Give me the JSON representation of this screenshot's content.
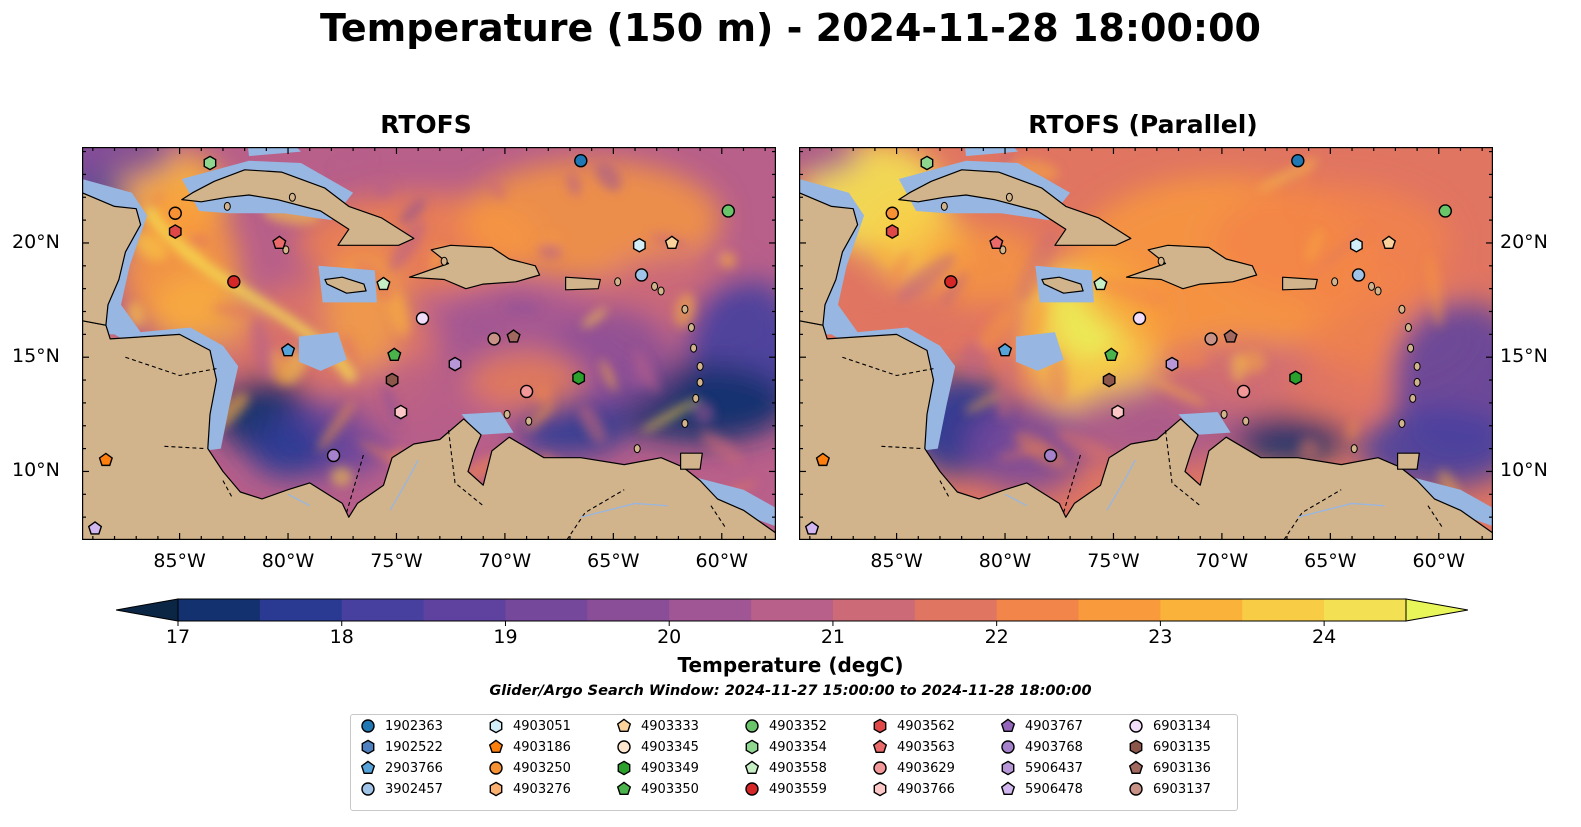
{
  "title": "Temperature (150 m) - 2024-11-28 18:00:00",
  "panels": [
    {
      "title": "RTOFS",
      "variant": "main"
    },
    {
      "title": "RTOFS (Parallel)",
      "variant": "parallel"
    }
  ],
  "map": {
    "lon_range": [
      -89.5,
      -57.5
    ],
    "lat_range": [
      7.0,
      24.2
    ],
    "lon_ticks": [
      {
        "value": -85,
        "label": "85°W"
      },
      {
        "value": -80,
        "label": "80°W"
      },
      {
        "value": -75,
        "label": "75°W"
      },
      {
        "value": -70,
        "label": "70°W"
      },
      {
        "value": -65,
        "label": "65°W"
      },
      {
        "value": -60,
        "label": "60°W"
      }
    ],
    "lat_ticks": [
      {
        "value": 20,
        "label": "20°N"
      },
      {
        "value": 15,
        "label": "15°N"
      },
      {
        "value": 10,
        "label": "10°N"
      }
    ],
    "land_color": "#d2b48c",
    "shelf_color": "#97b6e1"
  },
  "colorbar": {
    "label": "Temperature (degC)",
    "ticks": [
      "17",
      "18",
      "19",
      "20",
      "21",
      "22",
      "23",
      "24"
    ],
    "range": [
      17,
      24.5
    ],
    "colors": [
      "#0b2545",
      "#13316e",
      "#2a3a93",
      "#48409e",
      "#5f429f",
      "#75489c",
      "#8a4e99",
      "#a05594",
      "#b85f8a",
      "#cc6a78",
      "#e07562",
      "#f2854a",
      "#f99a3c",
      "#fbb23a",
      "#f9cc45",
      "#f3e153",
      "#e8f65a"
    ]
  },
  "search_window": "Glider/Argo Search Window: 2024-11-27 15:00:00 to 2024-11-28 18:00:00",
  "floats": [
    {
      "id": "1902363",
      "marker": "circle",
      "color": "#1f77b4",
      "lon": -66.5,
      "lat": 23.6
    },
    {
      "id": "1902522",
      "marker": "hexagon",
      "color": "#4f80bf",
      "lon": null,
      "lat": null
    },
    {
      "id": "2903766",
      "marker": "pentagon",
      "color": "#55a3d8",
      "lon": -80.0,
      "lat": 15.3
    },
    {
      "id": "3902457",
      "marker": "circle",
      "color": "#a0c4e8",
      "lon": -63.7,
      "lat": 18.6
    },
    {
      "id": "4903051",
      "marker": "hexagon",
      "color": "#d2eef9",
      "lon": -63.8,
      "lat": 19.9
    },
    {
      "id": "4903186",
      "marker": "pentagon",
      "color": "#ff7f0e",
      "lon": -88.4,
      "lat": 10.5
    },
    {
      "id": "4903250",
      "marker": "circle",
      "color": "#f79234",
      "lon": -85.2,
      "lat": 21.3
    },
    {
      "id": "4903276",
      "marker": "hexagon",
      "color": "#fbb070",
      "lon": null,
      "lat": null
    },
    {
      "id": "4903333",
      "marker": "pentagon",
      "color": "#fcd29c",
      "lon": -62.3,
      "lat": 20.0
    },
    {
      "id": "4903345",
      "marker": "circle",
      "color": "#fde8cf",
      "lon": null,
      "lat": null
    },
    {
      "id": "4903349",
      "marker": "hexagon",
      "color": "#2ca02c",
      "lon": -66.6,
      "lat": 14.1
    },
    {
      "id": "4903350",
      "marker": "pentagon",
      "color": "#4bb34b",
      "lon": -75.1,
      "lat": 15.1
    },
    {
      "id": "4903352",
      "marker": "circle",
      "color": "#6ac56a",
      "lon": -59.7,
      "lat": 21.4
    },
    {
      "id": "4903354",
      "marker": "hexagon",
      "color": "#8fd68f",
      "lon": -83.6,
      "lat": 23.5
    },
    {
      "id": "4903558",
      "marker": "pentagon",
      "color": "#c6efc6",
      "lon": -75.6,
      "lat": 18.2
    },
    {
      "id": "4903559",
      "marker": "circle",
      "color": "#d62728",
      "lon": -82.5,
      "lat": 18.3
    },
    {
      "id": "4903562",
      "marker": "hexagon",
      "color": "#e04848",
      "lon": -85.2,
      "lat": 20.5
    },
    {
      "id": "4903563",
      "marker": "pentagon",
      "color": "#ea6a6a",
      "lon": -80.4,
      "lat": 20.0
    },
    {
      "id": "4903629",
      "marker": "circle",
      "color": "#f29898",
      "lon": -69.0,
      "lat": 13.5
    },
    {
      "id": "4903766",
      "marker": "hexagon",
      "color": "#fcc7c7",
      "lon": -74.8,
      "lat": 12.6
    },
    {
      "id": "4903767",
      "marker": "pentagon",
      "color": "#9467bd",
      "lon": null,
      "lat": null
    },
    {
      "id": "4903768",
      "marker": "circle",
      "color": "#a682cc",
      "lon": -77.9,
      "lat": 10.7
    },
    {
      "id": "5906437",
      "marker": "hexagon",
      "color": "#b897d8",
      "lon": -72.3,
      "lat": 14.7
    },
    {
      "id": "5906478",
      "marker": "pentagon",
      "color": "#d1b6ef",
      "lon": -88.9,
      "lat": 7.5
    },
    {
      "id": "6903134",
      "marker": "circle",
      "color": "#f1dcfa",
      "lon": -73.8,
      "lat": 16.7
    },
    {
      "id": "6903135",
      "marker": "hexagon",
      "color": "#8c564b",
      "lon": -75.2,
      "lat": 14.0
    },
    {
      "id": "6903136",
      "marker": "pentagon",
      "color": "#a0685e",
      "lon": -69.6,
      "lat": 15.9
    },
    {
      "id": "6903137",
      "marker": "circle",
      "color": "#c99287",
      "lon": -70.5,
      "lat": 15.8
    }
  ]
}
